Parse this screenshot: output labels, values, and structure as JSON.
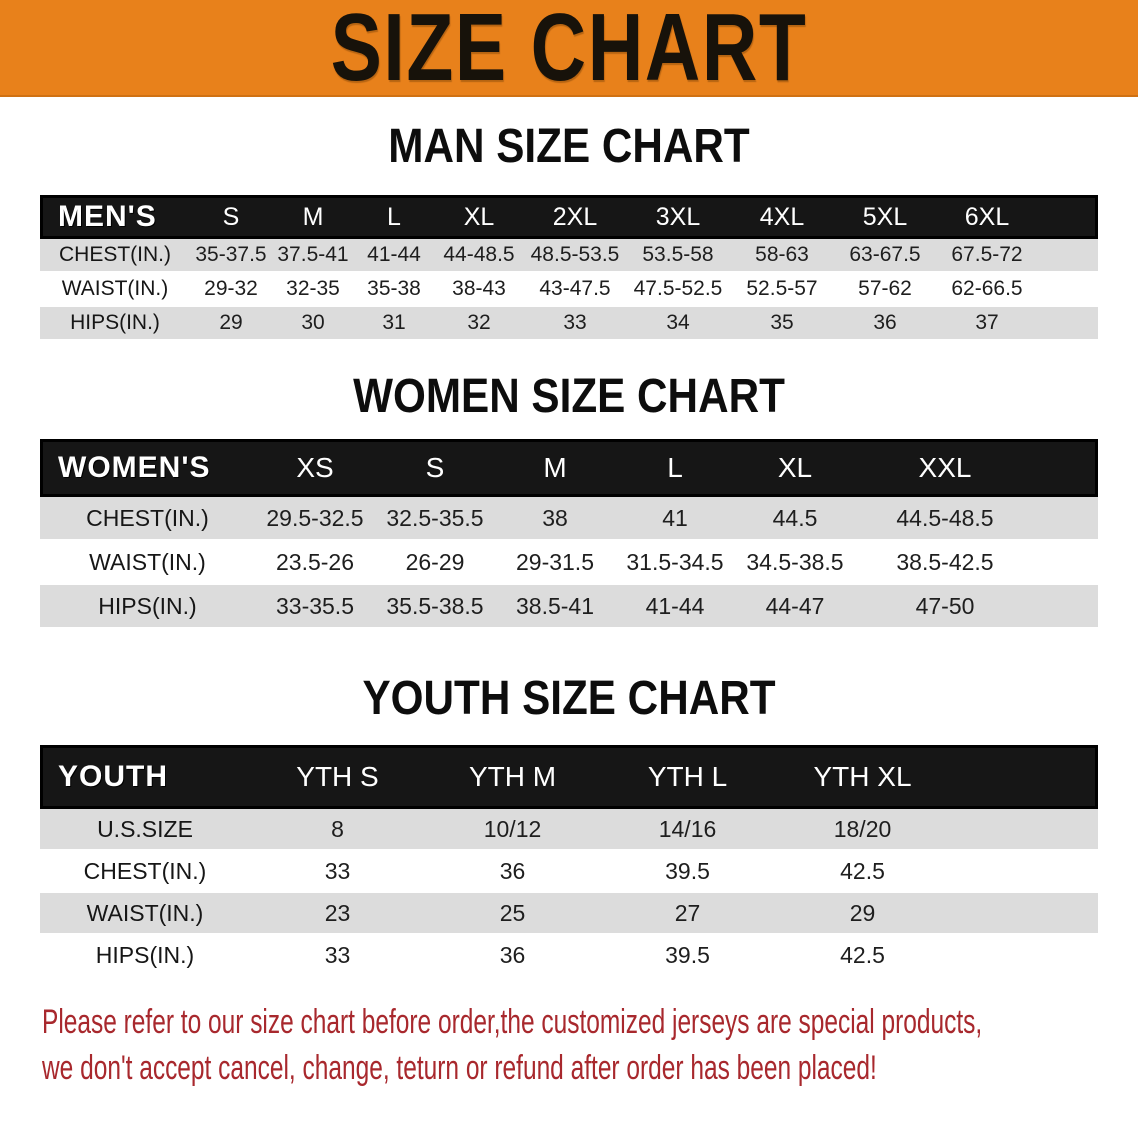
{
  "banner": {
    "title": "SIZE CHART"
  },
  "colors": {
    "banner_bg": "#E8811B",
    "header_bar_bg": "#161616",
    "row_alt_bg": "#DCDCDC",
    "footer_text": "#A8282D"
  },
  "sections": [
    {
      "heading": "MAN SIZE CHART",
      "header_label": "MEN'S",
      "columns": [
        "S",
        "M",
        "L",
        "XL",
        "2XL",
        "3XL",
        "4XL",
        "5XL",
        "6XL"
      ],
      "rows": [
        {
          "label": "CHEST(IN.)",
          "values": [
            "35-37.5",
            "37.5-41",
            "41-44",
            "44-48.5",
            "48.5-53.5",
            "53.5-58",
            "58-63",
            "63-67.5",
            "67.5-72"
          ]
        },
        {
          "label": "WAIST(IN.)",
          "values": [
            "29-32",
            "32-35",
            "35-38",
            "38-43",
            "43-47.5",
            "47.5-52.5",
            "52.5-57",
            "57-62",
            "62-66.5"
          ]
        },
        {
          "label": "HIPS(IN.)",
          "values": [
            "29",
            "30",
            "31",
            "32",
            "33",
            "34",
            "35",
            "36",
            "37"
          ]
        }
      ]
    },
    {
      "heading": "WOMEN SIZE CHART",
      "header_label": "WOMEN'S",
      "columns": [
        "XS",
        "S",
        "M",
        "L",
        "XL",
        "XXL"
      ],
      "rows": [
        {
          "label": "CHEST(IN.)",
          "values": [
            "29.5-32.5",
            "32.5-35.5",
            "38",
            "41",
            "44.5",
            "44.5-48.5"
          ]
        },
        {
          "label": "WAIST(IN.)",
          "values": [
            "23.5-26",
            "26-29",
            "29-31.5",
            "31.5-34.5",
            "34.5-38.5",
            "38.5-42.5"
          ]
        },
        {
          "label": "HIPS(IN.)",
          "values": [
            "33-35.5",
            "35.5-38.5",
            "38.5-41",
            "41-44",
            "44-47",
            "47-50"
          ]
        }
      ]
    },
    {
      "heading": "YOUTH SIZE CHART",
      "header_label": "YOUTH",
      "columns": [
        "YTH S",
        "YTH M",
        "YTH L",
        "YTH XL"
      ],
      "rows": [
        {
          "label": "U.S.SIZE",
          "values": [
            "8",
            "10/12",
            "14/16",
            "18/20"
          ]
        },
        {
          "label": "CHEST(IN.)",
          "values": [
            "33",
            "36",
            "39.5",
            "42.5"
          ]
        },
        {
          "label": "WAIST(IN.)",
          "values": [
            "23",
            "25",
            "27",
            "29"
          ]
        },
        {
          "label": "HIPS(IN.)",
          "values": [
            "33",
            "36",
            "39.5",
            "42.5"
          ]
        }
      ]
    }
  ],
  "footer": {
    "line1": "Please refer to our size chart before order,the customized jerseys are special products,",
    "line2": "we don't accept cancel, change, teturn or refund after order has been placed!"
  }
}
